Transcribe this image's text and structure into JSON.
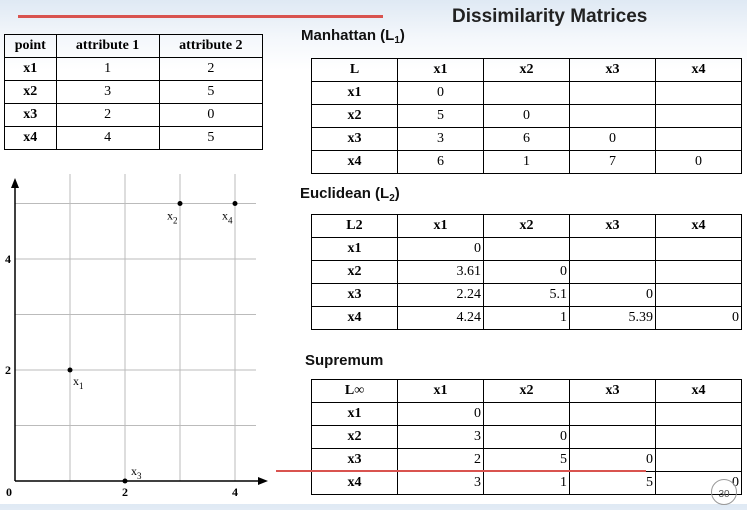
{
  "title": "Dissimilarity Matrices",
  "points_table": {
    "headers": [
      "point",
      "attribute 1",
      "attribute 2"
    ],
    "rows": [
      [
        "x1",
        "1",
        "2"
      ],
      [
        "x2",
        "3",
        "5"
      ],
      [
        "x3",
        "2",
        "0"
      ],
      [
        "x4",
        "4",
        "5"
      ]
    ]
  },
  "manhattan": {
    "caption_main": "Manhattan (L",
    "caption_sub": "1",
    "caption_end": ")",
    "corner": "L",
    "headers": [
      "x1",
      "x2",
      "x3",
      "x4"
    ],
    "rows": [
      {
        "label": "x1",
        "cells": [
          "0",
          "",
          "",
          ""
        ]
      },
      {
        "label": "x2",
        "cells": [
          "5",
          "0",
          "",
          ""
        ]
      },
      {
        "label": "x3",
        "cells": [
          "3",
          "6",
          "0",
          ""
        ]
      },
      {
        "label": "x4",
        "cells": [
          "6",
          "1",
          "7",
          "0"
        ]
      }
    ]
  },
  "euclidean": {
    "caption_main": "Euclidean (L",
    "caption_sub": "2",
    "caption_end": ")",
    "corner": "L2",
    "headers": [
      "x1",
      "x2",
      "x3",
      "x4"
    ],
    "rows": [
      {
        "label": "x1",
        "cells": [
          "0",
          "",
          "",
          ""
        ]
      },
      {
        "label": "x2",
        "cells": [
          "3.61",
          "0",
          "",
          ""
        ]
      },
      {
        "label": "x3",
        "cells": [
          "2.24",
          "5.1",
          "0",
          ""
        ]
      },
      {
        "label": "x4",
        "cells": [
          "4.24",
          "1",
          "5.39",
          "0"
        ]
      }
    ]
  },
  "supremum": {
    "caption": "Supremum",
    "corner": "L∞",
    "headers": [
      "x1",
      "x2",
      "x3",
      "x4"
    ],
    "rows": [
      {
        "label": "x1",
        "cells": [
          "0",
          "",
          "",
          ""
        ]
      },
      {
        "label": "x2",
        "cells": [
          "3",
          "0",
          "",
          ""
        ]
      },
      {
        "label": "x3",
        "cells": [
          "2",
          "5",
          "0",
          ""
        ]
      },
      {
        "label": "x4",
        "cells": [
          "3",
          "1",
          "5",
          "0"
        ]
      }
    ]
  },
  "chart_data": {
    "type": "scatter",
    "points": [
      {
        "label": "x",
        "sub": "1",
        "x": 1,
        "y": 2
      },
      {
        "label": "x",
        "sub": "2",
        "x": 3,
        "y": 5
      },
      {
        "label": "x",
        "sub": "3",
        "x": 2,
        "y": 0
      },
      {
        "label": "x",
        "sub": "4",
        "x": 4,
        "y": 5
      }
    ],
    "xlim": [
      0,
      4.2
    ],
    "ylim": [
      0,
      5.6
    ],
    "x_ticks": [
      "0",
      "2",
      "4"
    ],
    "y_ticks": [
      "2",
      "4"
    ],
    "grid": true
  },
  "page_number": "30"
}
